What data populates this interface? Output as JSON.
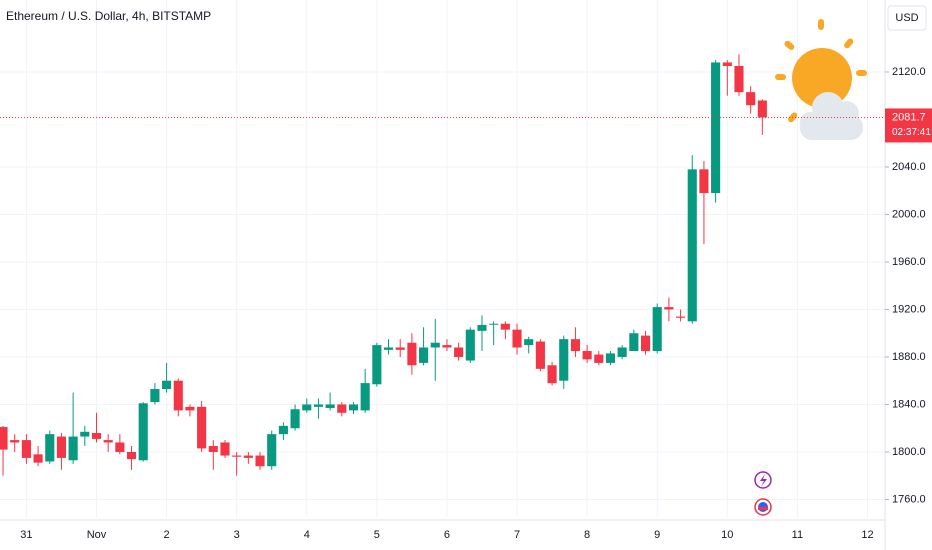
{
  "chart_data": {
    "type": "candlestick",
    "title": "Ethereum / U.S. Dollar, 4h, BITSTAMP",
    "currency": "USD",
    "last_price": 2081.7,
    "countdown": "02:37:41",
    "up_color": "#089981",
    "down_color": "#f23645",
    "grid": true,
    "open": [
      1821,
      1810,
      1810,
      1798,
      1792,
      1813,
      1793,
      1813,
      1816,
      1810,
      1808,
      1800,
      1793,
      1842,
      1853,
      1860,
      1838,
      1838,
      1805,
      1808,
      1797,
      1797,
      1797,
      1788,
      1815,
      1820,
      1835,
      1838,
      1837,
      1840,
      1835,
      1835,
      1857,
      1886,
      1888,
      1892,
      1875,
      1888,
      1890,
      1888,
      1877,
      1902,
      1908,
      1908,
      1903,
      1890,
      1893,
      1873,
      1860,
      1895,
      1885,
      1882,
      1875,
      1880,
      1885,
      1898,
      1885,
      1922,
      1914,
      1910,
      2038,
      2018,
      2128,
      2125,
      2103,
      2096
    ],
    "high": [
      1822,
      1815,
      1815,
      1805,
      1818,
      1816,
      1850,
      1822,
      1833,
      1815,
      1815,
      1805,
      1842,
      1858,
      1875,
      1862,
      1840,
      1843,
      1810,
      1810,
      1800,
      1800,
      1800,
      1818,
      1825,
      1840,
      1845,
      1845,
      1850,
      1842,
      1842,
      1870,
      1892,
      1895,
      1895,
      1900,
      1905,
      1912,
      1895,
      1892,
      1905,
      1915,
      1910,
      1910,
      1908,
      1897,
      1895,
      1876,
      1898,
      1905,
      1890,
      1885,
      1885,
      1890,
      1903,
      1902,
      1925,
      1930,
      1920,
      2050,
      2045,
      2130,
      2130,
      2135,
      2108,
      2097
    ],
    "low": [
      1780,
      1800,
      1790,
      1788,
      1790,
      1785,
      1790,
      1805,
      1808,
      1800,
      1798,
      1785,
      1792,
      1840,
      1850,
      1830,
      1830,
      1800,
      1785,
      1795,
      1780,
      1790,
      1785,
      1785,
      1810,
      1818,
      1833,
      1828,
      1835,
      1830,
      1832,
      1833,
      1855,
      1882,
      1880,
      1865,
      1873,
      1860,
      1885,
      1877,
      1875,
      1885,
      1890,
      1895,
      1882,
      1883,
      1868,
      1856,
      1853,
      1880,
      1875,
      1873,
      1873,
      1878,
      1885,
      1882,
      1883,
      1910,
      1910,
      1908,
      1975,
      2010,
      2100,
      2100,
      2085,
      2067
    ],
    "close": [
      1802,
      1808,
      1795,
      1791,
      1815,
      1795,
      1813,
      1817,
      1811,
      1808,
      1800,
      1794,
      1841,
      1853,
      1860,
      1835,
      1835,
      1803,
      1800,
      1797,
      1796,
      1795,
      1788,
      1815,
      1822,
      1836,
      1840,
      1840,
      1840,
      1833,
      1840,
      1858,
      1890,
      1888,
      1886,
      1873,
      1888,
      1892,
      1888,
      1880,
      1903,
      1907,
      1908,
      1903,
      1888,
      1895,
      1870,
      1858,
      1895,
      1885,
      1878,
      1875,
      1883,
      1888,
      1900,
      1885,
      1922,
      1920,
      1913,
      2038,
      2018,
      2128,
      2125,
      2103,
      2092,
      2081.7
    ],
    "xlim": [
      -0.26,
      75.5
    ],
    "xticks": [
      {
        "value": 2,
        "label": "31"
      },
      {
        "value": 8,
        "label": "Nov"
      },
      {
        "value": 14,
        "label": "2"
      },
      {
        "value": 20,
        "label": "3"
      },
      {
        "value": 26,
        "label": "4"
      },
      {
        "value": 32,
        "label": "5"
      },
      {
        "value": 38,
        "label": "6"
      },
      {
        "value": 44,
        "label": "7"
      },
      {
        "value": 50,
        "label": "8"
      },
      {
        "value": 56,
        "label": "9"
      },
      {
        "value": 62,
        "label": "10"
      },
      {
        "value": 68,
        "label": "11"
      },
      {
        "value": 74,
        "label": "12"
      }
    ],
    "ylim": [
      1744.4,
      2180.6
    ],
    "yticks": [
      {
        "value": 1760,
        "label": "1760.0"
      },
      {
        "value": 1800,
        "label": "1800.0"
      },
      {
        "value": 1840,
        "label": "1840.0"
      },
      {
        "value": 1880,
        "label": "1880.0"
      },
      {
        "value": 1920,
        "label": "1920.0"
      },
      {
        "value": 1960,
        "label": "1960.0"
      },
      {
        "value": 2000,
        "label": "2000.0"
      },
      {
        "value": 2040,
        "label": "2040.0"
      },
      {
        "value": 2120,
        "label": "2120.0"
      }
    ]
  }
}
